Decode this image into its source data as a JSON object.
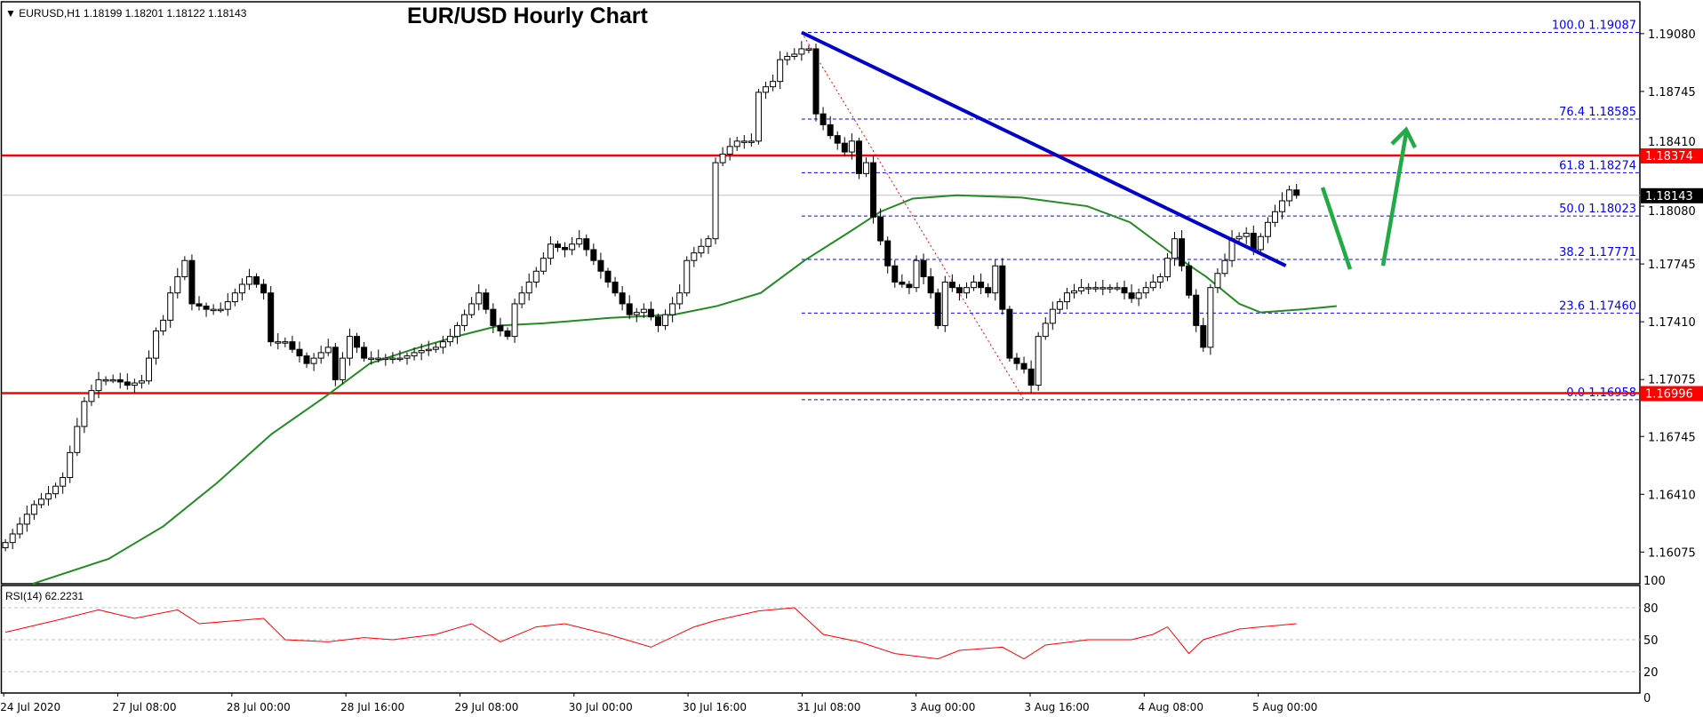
{
  "header": {
    "symbol_info": "EURUSD,H1  1.18199 1.18201 1.18122 1.18143",
    "title": "EUR/USD Hourly Chart"
  },
  "rsi": {
    "label": "RSI(14) 62.2231",
    "axis_ticks": [
      "100",
      "80",
      "50",
      "20",
      "0"
    ],
    "tick_values": [
      100,
      80,
      50,
      20,
      0
    ],
    "color": "#ff0000",
    "points": [
      [
        0,
        57
      ],
      [
        7,
        68
      ],
      [
        13,
        78
      ],
      [
        18,
        70
      ],
      [
        24,
        78
      ],
      [
        27,
        65
      ],
      [
        36,
        70
      ],
      [
        39,
        50
      ],
      [
        45,
        48
      ],
      [
        50,
        52
      ],
      [
        54,
        50
      ],
      [
        60,
        55
      ],
      [
        65,
        65
      ],
      [
        69,
        48
      ],
      [
        74,
        62
      ],
      [
        78,
        65
      ],
      [
        84,
        55
      ],
      [
        90,
        43
      ],
      [
        96,
        62
      ],
      [
        99,
        68
      ],
      [
        105,
        77
      ],
      [
        110,
        80
      ],
      [
        114,
        55
      ],
      [
        119,
        48
      ],
      [
        124,
        37
      ],
      [
        130,
        32
      ],
      [
        133,
        40
      ],
      [
        139,
        43
      ],
      [
        142,
        32
      ],
      [
        145,
        45
      ],
      [
        151,
        50
      ],
      [
        157,
        50
      ],
      [
        160,
        55
      ],
      [
        162,
        62
      ],
      [
        165,
        37
      ],
      [
        167,
        50
      ],
      [
        172,
        60
      ],
      [
        175,
        62
      ],
      [
        180,
        65
      ]
    ]
  },
  "chart_data": {
    "type": "candlestick",
    "title": "EUR/USD Hourly Chart",
    "timeframe": "H1",
    "ylim": [
      1.1585,
      1.1923
    ],
    "y_ticks": [
      "1.19080",
      "1.18745",
      "1.18410",
      "1.18080",
      "1.17745",
      "1.17410",
      "1.17075",
      "1.16745",
      "1.16410",
      "1.16075"
    ],
    "x_tick_labels": [
      "24 Jul 2020",
      "27 Jul 08:00",
      "28 Jul 00:00",
      "28 Jul 16:00",
      "29 Jul 08:00",
      "30 Jul 00:00",
      "30 Jul 16:00",
      "31 Jul 08:00",
      "3 Aug 00:00",
      "3 Aug 16:00",
      "4 Aug 08:00",
      "5 Aug 00:00"
    ],
    "closes": [
      1.1613,
      1.1618,
      1.16237,
      1.16294,
      1.1635,
      1.16382,
      1.16413,
      1.16457,
      1.16507,
      1.16652,
      1.16803,
      1.16948,
      1.17011,
      1.17074,
      1.17074,
      1.17074,
      1.17061,
      1.17042,
      1.17055,
      1.17067,
      1.17199,
      1.17357,
      1.17419,
      1.17577,
      1.17671,
      1.17765,
      1.17514,
      1.17501,
      1.17482,
      1.17482,
      1.17482,
      1.17526,
      1.17577,
      1.17627,
      1.17671,
      1.17627,
      1.17577,
      1.17294,
      1.17294,
      1.17294,
      1.1725,
      1.17212,
      1.17168,
      1.17199,
      1.17231,
      1.17262,
      1.17074,
      1.17199,
      1.17325,
      1.17262,
      1.17199,
      1.17199,
      1.17199,
      1.17199,
      1.17199,
      1.17199,
      1.17212,
      1.17231,
      1.17243,
      1.1725,
      1.17262,
      1.17294,
      1.17325,
      1.17388,
      1.17451,
      1.17514,
      1.17577,
      1.17482,
      1.17388,
      1.17357,
      1.17325,
      1.17514,
      1.17577,
      1.1764,
      1.17703,
      1.17778,
      1.1786,
      1.17841,
      1.17828,
      1.1786,
      1.17891,
      1.17828,
      1.17765,
      1.17703,
      1.1764,
      1.17577,
      1.17514,
      1.17451,
      1.17464,
      1.17482,
      1.17438,
      1.17388,
      1.17451,
      1.17514,
      1.17577,
      1.17765,
      1.17809,
      1.17847,
      1.17891,
      1.18332,
      1.18382,
      1.18426,
      1.18457,
      1.18457,
      1.18457,
      1.1874,
      1.18772,
      1.18803,
      1.18929,
      1.18948,
      1.18961,
      1.18992,
      1.18992,
      1.18615,
      1.18552,
      1.18489,
      1.18445,
      1.18394,
      1.18457,
      1.18269,
      1.18332,
      1.18017,
      1.17879,
      1.17734,
      1.1764,
      1.17627,
      1.17608,
      1.17765,
      1.17671,
      1.17577,
      1.17388,
      1.1764,
      1.17608,
      1.17577,
      1.17608,
      1.1764,
      1.17608,
      1.17577,
      1.17734,
      1.17482,
      1.17199,
      1.17168,
      1.17136,
      1.17042,
      1.17325,
      1.17401,
      1.17482,
      1.17526,
      1.17577,
      1.17589,
      1.17608,
      1.17608,
      1.17608,
      1.17608,
      1.17608,
      1.17608,
      1.17577,
      1.17545,
      1.17577,
      1.17608,
      1.1764,
      1.17671,
      1.17778,
      1.17891,
      1.17734,
      1.17564,
      1.17388,
      1.17262,
      1.17608,
      1.1769,
      1.17765,
      1.17891,
      1.17904,
      1.17923,
      1.17828,
      1.17904,
      1.17986,
      1.18048,
      1.18111,
      1.18174,
      1.18143
    ],
    "moving_average": {
      "color": "#228b22",
      "points": [
        [
          3.8,
          1.15891
        ],
        [
          14.4,
          1.16036
        ],
        [
          22,
          1.16224
        ],
        [
          29.5,
          1.16476
        ],
        [
          37.1,
          1.16759
        ],
        [
          44.7,
          1.16979
        ],
        [
          50.8,
          1.17168
        ],
        [
          56.8,
          1.1725
        ],
        [
          62.9,
          1.17325
        ],
        [
          68.9,
          1.17388
        ],
        [
          75,
          1.17401
        ],
        [
          84.1,
          1.17432
        ],
        [
          93.2,
          1.17451
        ],
        [
          99.2,
          1.17501
        ],
        [
          105.3,
          1.17577
        ],
        [
          111.4,
          1.17765
        ],
        [
          117.4,
          1.17923
        ],
        [
          122,
          1.18048
        ],
        [
          126.5,
          1.18124
        ],
        [
          132.6,
          1.18143
        ],
        [
          141.7,
          1.1813
        ],
        [
          150.8,
          1.1808
        ],
        [
          156.8,
          1.17986
        ],
        [
          162.9,
          1.17797
        ],
        [
          167.4,
          1.17671
        ],
        [
          172,
          1.17514
        ],
        [
          175,
          1.17464
        ],
        [
          181,
          1.17482
        ],
        [
          185.6,
          1.17501
        ]
      ]
    },
    "horizontal_levels": [
      {
        "price": 1.18374,
        "label": "1.18374",
        "color": "#ff0000"
      },
      {
        "price": 1.16996,
        "label": "1.16996",
        "color": "#ff0000"
      }
    ],
    "current_price": {
      "price": 1.18143,
      "label": "1.18143",
      "color": "#000000"
    },
    "fibonacci": {
      "color": "#0000ff",
      "levels": [
        {
          "ratio": "100.0",
          "price": 1.19087,
          "label": "100.0 1.19087"
        },
        {
          "ratio": "76.4",
          "price": 1.18585,
          "label": "76.4 1.18585"
        },
        {
          "ratio": "61.8",
          "price": 1.18274,
          "label": "61.8 1.18274"
        },
        {
          "ratio": "50.0",
          "price": 1.18023,
          "label": "50.0 1.18023"
        },
        {
          "ratio": "38.2",
          "price": 1.17771,
          "label": "38.2 1.17771"
        },
        {
          "ratio": "23.6",
          "price": 1.1746,
          "label": "23.6 1.17460"
        },
        {
          "ratio": "0.0",
          "price": 1.16958,
          "label": "0.0 1.16958"
        }
      ],
      "from": [
        111,
        1.19087
      ],
      "to": [
        142,
        1.16958
      ]
    },
    "trendline": {
      "color": "#0000cc",
      "from": [
        111,
        1.19087
      ],
      "to": [
        178.5,
        1.17735
      ]
    },
    "annotation_arrows_color": "#22aa44"
  }
}
